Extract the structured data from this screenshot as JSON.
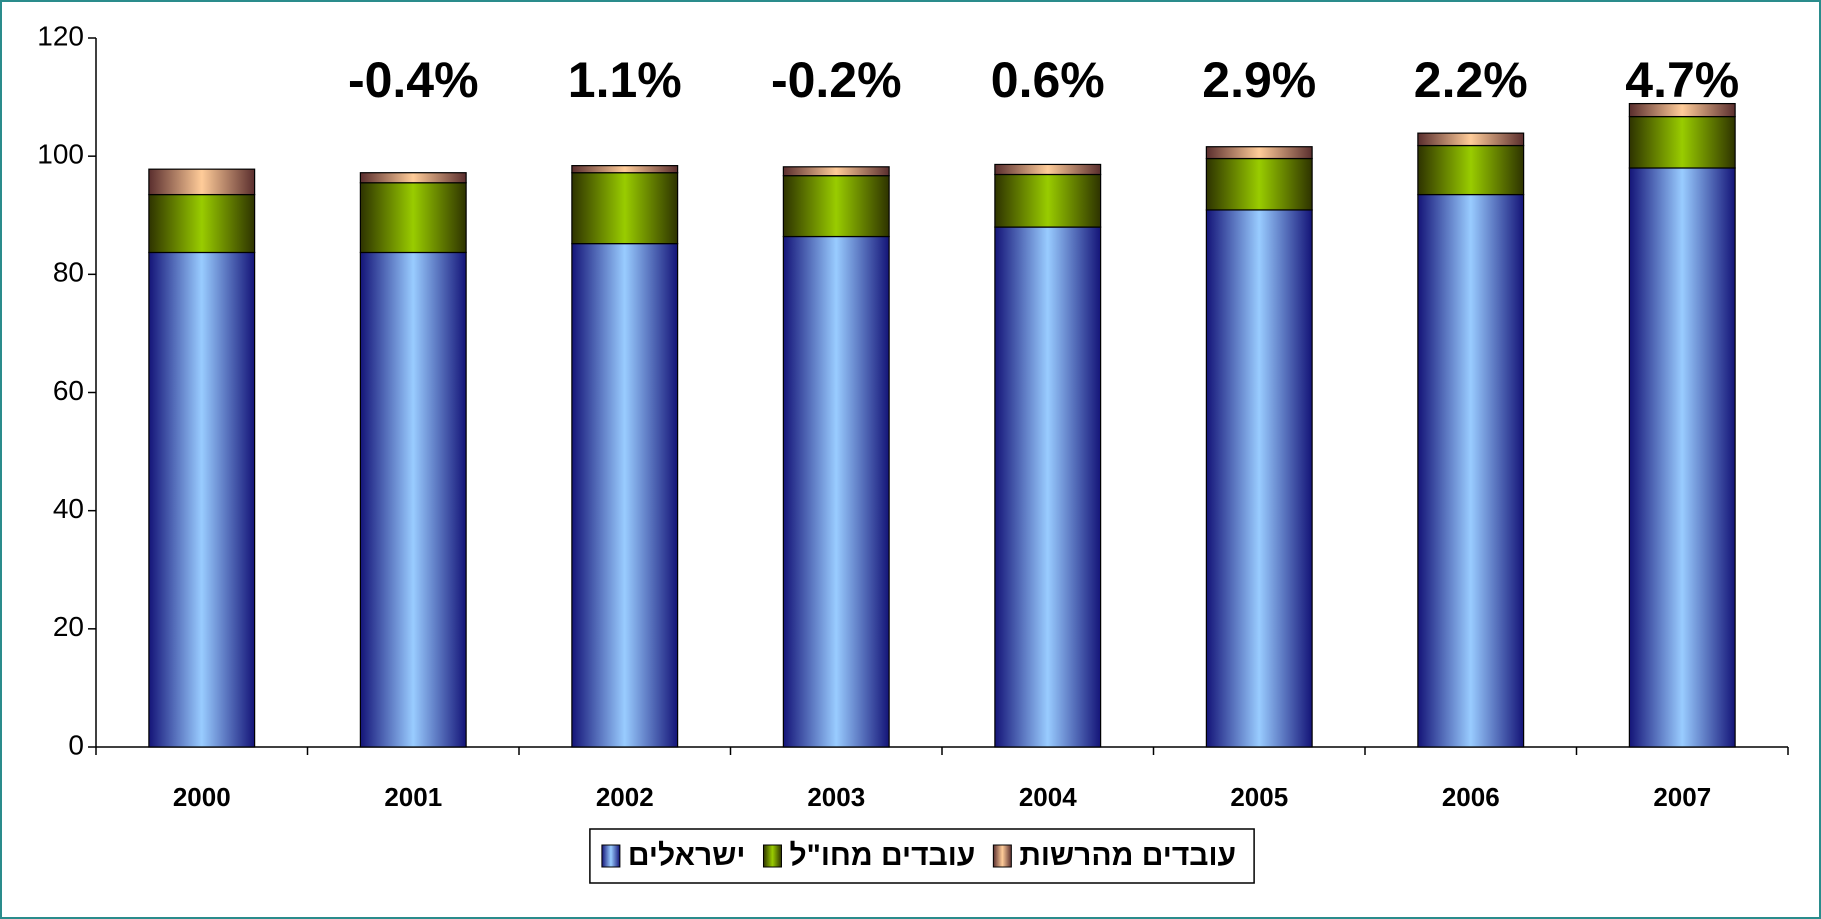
{
  "chart_data": {
    "type": "stacked_bar",
    "categories": [
      "2000",
      "2001",
      "2002",
      "2003",
      "2004",
      "2005",
      "2006",
      "2007"
    ],
    "series": [
      {
        "name": "ישראלים",
        "color": "#99ccff",
        "values": [
          83.7,
          83.7,
          85.2,
          86.4,
          88.0,
          90.9,
          93.5,
          98.0
        ]
      },
      {
        "name": "עובדים מחו\"ל",
        "color": "#99cc00",
        "values": [
          9.8,
          11.8,
          12.0,
          10.3,
          8.9,
          8.7,
          8.3,
          8.7
        ]
      },
      {
        "name": "עובדים מהרשות",
        "color": "#ffcc99",
        "values": [
          4.3,
          1.7,
          1.2,
          1.5,
          1.7,
          2.0,
          2.1,
          2.2
        ]
      }
    ],
    "annotations": [
      {
        "category": "2001",
        "text": "-0.4%"
      },
      {
        "category": "2002",
        "text": "1.1%"
      },
      {
        "category": "2003",
        "text": "-0.2%"
      },
      {
        "category": "2004",
        "text": "0.6%"
      },
      {
        "category": "2005",
        "text": "2.9%"
      },
      {
        "category": "2006",
        "text": "2.2%"
      },
      {
        "category": "2007",
        "text": "4.7%"
      }
    ],
    "ylim": [
      0,
      120
    ],
    "yticks": [
      0,
      20,
      40,
      60,
      80,
      100,
      120
    ],
    "grid": false,
    "legend": "bottom"
  }
}
